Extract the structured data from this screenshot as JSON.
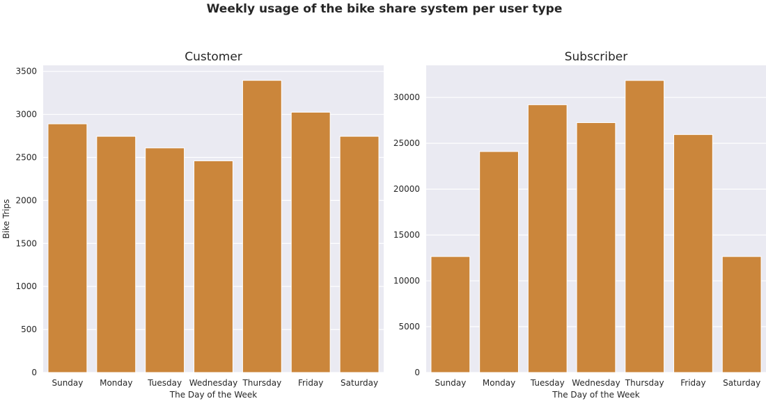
{
  "figure": {
    "title": "Weekly usage of the bike share system per user type"
  },
  "colors": {
    "bar": "#cb863b",
    "plot_background": "#eaeaf2",
    "grid": "#ffffff",
    "text": "#262626"
  },
  "chart_data": [
    {
      "type": "bar",
      "title": "Customer",
      "xlabel": "The Day of the Week",
      "ylabel": "Bike Trips",
      "categories": [
        "Sunday",
        "Monday",
        "Tuesday",
        "Wednesday",
        "Thursday",
        "Friday",
        "Saturday"
      ],
      "values": [
        2890,
        2745,
        2610,
        2460,
        3395,
        3025,
        2745
      ],
      "ylim": [
        0,
        3570
      ],
      "yticks": [
        0,
        500,
        1000,
        1500,
        2000,
        2500,
        3000,
        3500
      ],
      "grid": true
    },
    {
      "type": "bar",
      "title": "Subscriber",
      "xlabel": "The Day of the Week",
      "ylabel": "",
      "categories": [
        "Sunday",
        "Monday",
        "Tuesday",
        "Wednesday",
        "Thursday",
        "Friday",
        "Saturday"
      ],
      "values": [
        12650,
        24100,
        29200,
        27250,
        31850,
        25950,
        12650
      ],
      "ylim": [
        0,
        33500
      ],
      "yticks": [
        0,
        5000,
        10000,
        15000,
        20000,
        25000,
        30000
      ],
      "grid": true
    }
  ]
}
